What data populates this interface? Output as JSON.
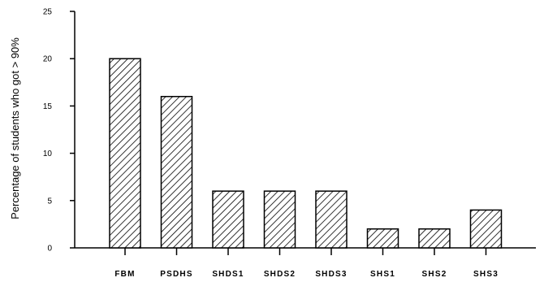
{
  "chart_data": {
    "type": "bar",
    "title": "",
    "xlabel": "",
    "ylabel": "Percentage of students who got > 90%",
    "categories": [
      "FBM",
      "PSDHS",
      "SHDS1",
      "SHDS2",
      "SHDS3",
      "SHS1",
      "SHS2",
      "SHS3"
    ],
    "category_display": [
      "FBM",
      "PSDHS",
      "SHDS1",
      "SHDS2",
      "SHDS3",
      "SHS1",
      "SHS2",
      "SHS3"
    ],
    "values": [
      20,
      16,
      6,
      6,
      6,
      2,
      2,
      4
    ],
    "ylim": [
      0,
      25
    ],
    "yticks": [
      0,
      5,
      10,
      15,
      20,
      25
    ],
    "grid": false,
    "bar_fill": "diagonal-hatch",
    "colors": {
      "bar_stroke": "#000000",
      "hatch": "#000000",
      "background": "#ffffff"
    }
  }
}
